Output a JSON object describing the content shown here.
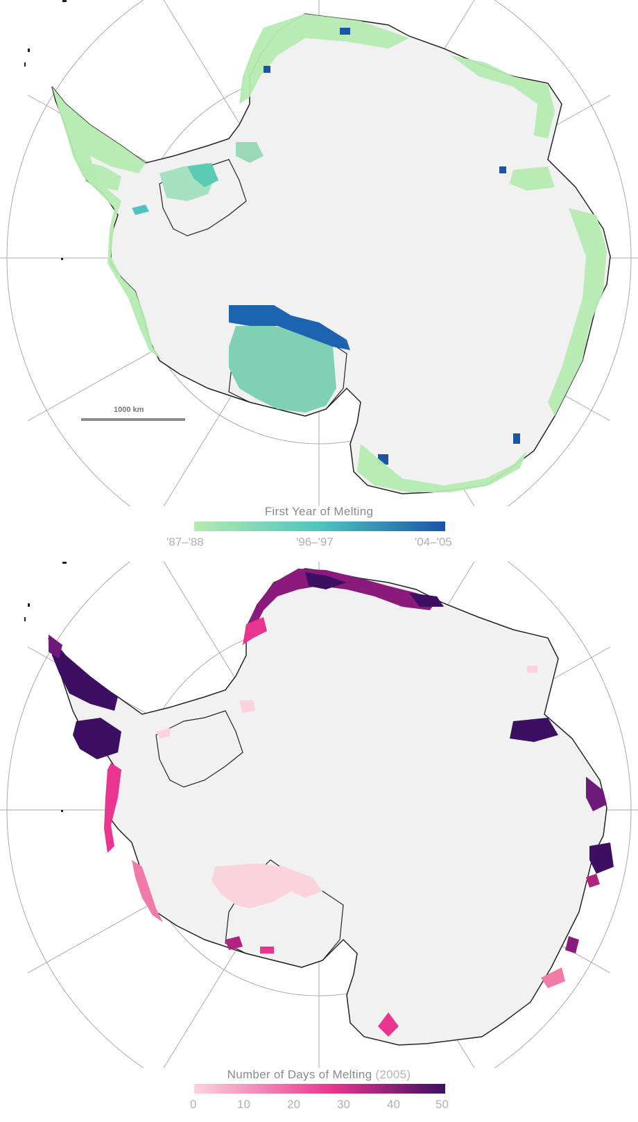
{
  "maps": [
    {
      "legend": {
        "title": "First Year of Melting",
        "subtitle": "",
        "ticks": [
          "'87–'88",
          "'96–'97",
          "'04–'05"
        ],
        "colors": [
          "#b4ebb0",
          "#4fc4bf",
          "#1a55a6"
        ]
      },
      "scale_label": "1000 km"
    },
    {
      "legend": {
        "title": "Number of Days of Melting",
        "subtitle": "(2005)",
        "ticks": [
          "0",
          "10",
          "20",
          "30",
          "40",
          "50"
        ],
        "colors": [
          "#fbd3dc",
          "#e9358f",
          "#3d0f63"
        ]
      }
    }
  ],
  "colors": {
    "ice": "#f1f1f2",
    "grid": "#a8a8a8",
    "coast": "#1e1e1e"
  }
}
